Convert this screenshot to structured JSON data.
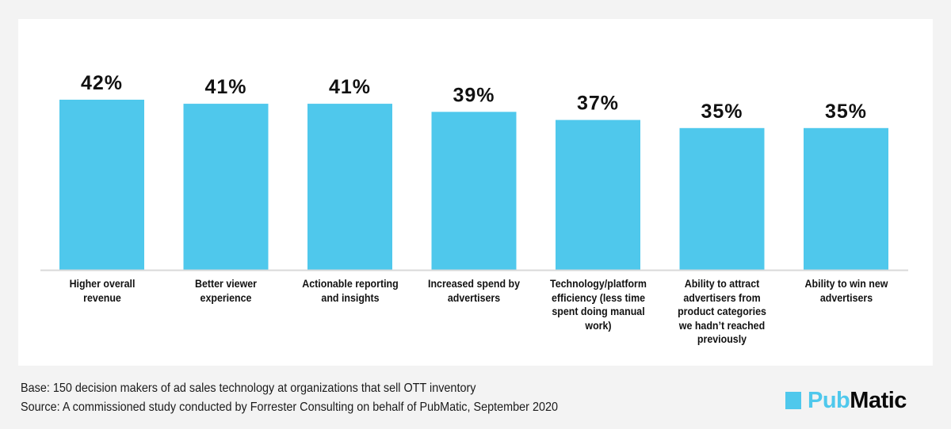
{
  "chart_data": {
    "type": "bar",
    "title": "",
    "xlabel": "",
    "ylabel": "",
    "ylim": [
      0,
      100
    ],
    "grid": false,
    "unit": "%",
    "categories": [
      "Higher overall revenue",
      "Better viewer experience",
      "Actionable reporting and insights",
      "Increased spend by advertisers",
      "Technology/platform efficiency (less time spent doing manual work)",
      "Ability to attract advertisers from product categories we hadn't reached previously",
      "Ability to win new advertisers"
    ],
    "category_label_lines": [
      [
        "Higher overall",
        "revenue"
      ],
      [
        "Better viewer",
        "experience"
      ],
      [
        "Actionable reporting",
        "and insights"
      ],
      [
        "Increased spend by",
        "advertisers"
      ],
      [
        "Technology/platform",
        "efficiency (less time",
        "spent doing manual",
        "work)"
      ],
      [
        "Ability to attract",
        "advertisers from",
        "product categories",
        "we hadn’t reached",
        "previously"
      ],
      [
        "Ability to win new",
        "advertisers"
      ]
    ],
    "values": [
      42,
      41,
      41,
      39,
      37,
      35,
      35
    ],
    "data_labels": [
      "42%",
      "41%",
      "41%",
      "39%",
      "37%",
      "35%",
      "35%"
    ],
    "bar_color": "#4fc8ec",
    "axis_color": "#d9d9d9"
  },
  "footer": {
    "base_note": "Base: 150 decision makers of ad sales technology  at organizations that sell OTT inventory",
    "source_note": "Source: A commissioned study conducted by Forrester Consulting on behalf of PubMatic, September 2020"
  },
  "logo": {
    "part1": "Pub",
    "part2": "Matic",
    "brand_color": "#4fc8ec"
  }
}
